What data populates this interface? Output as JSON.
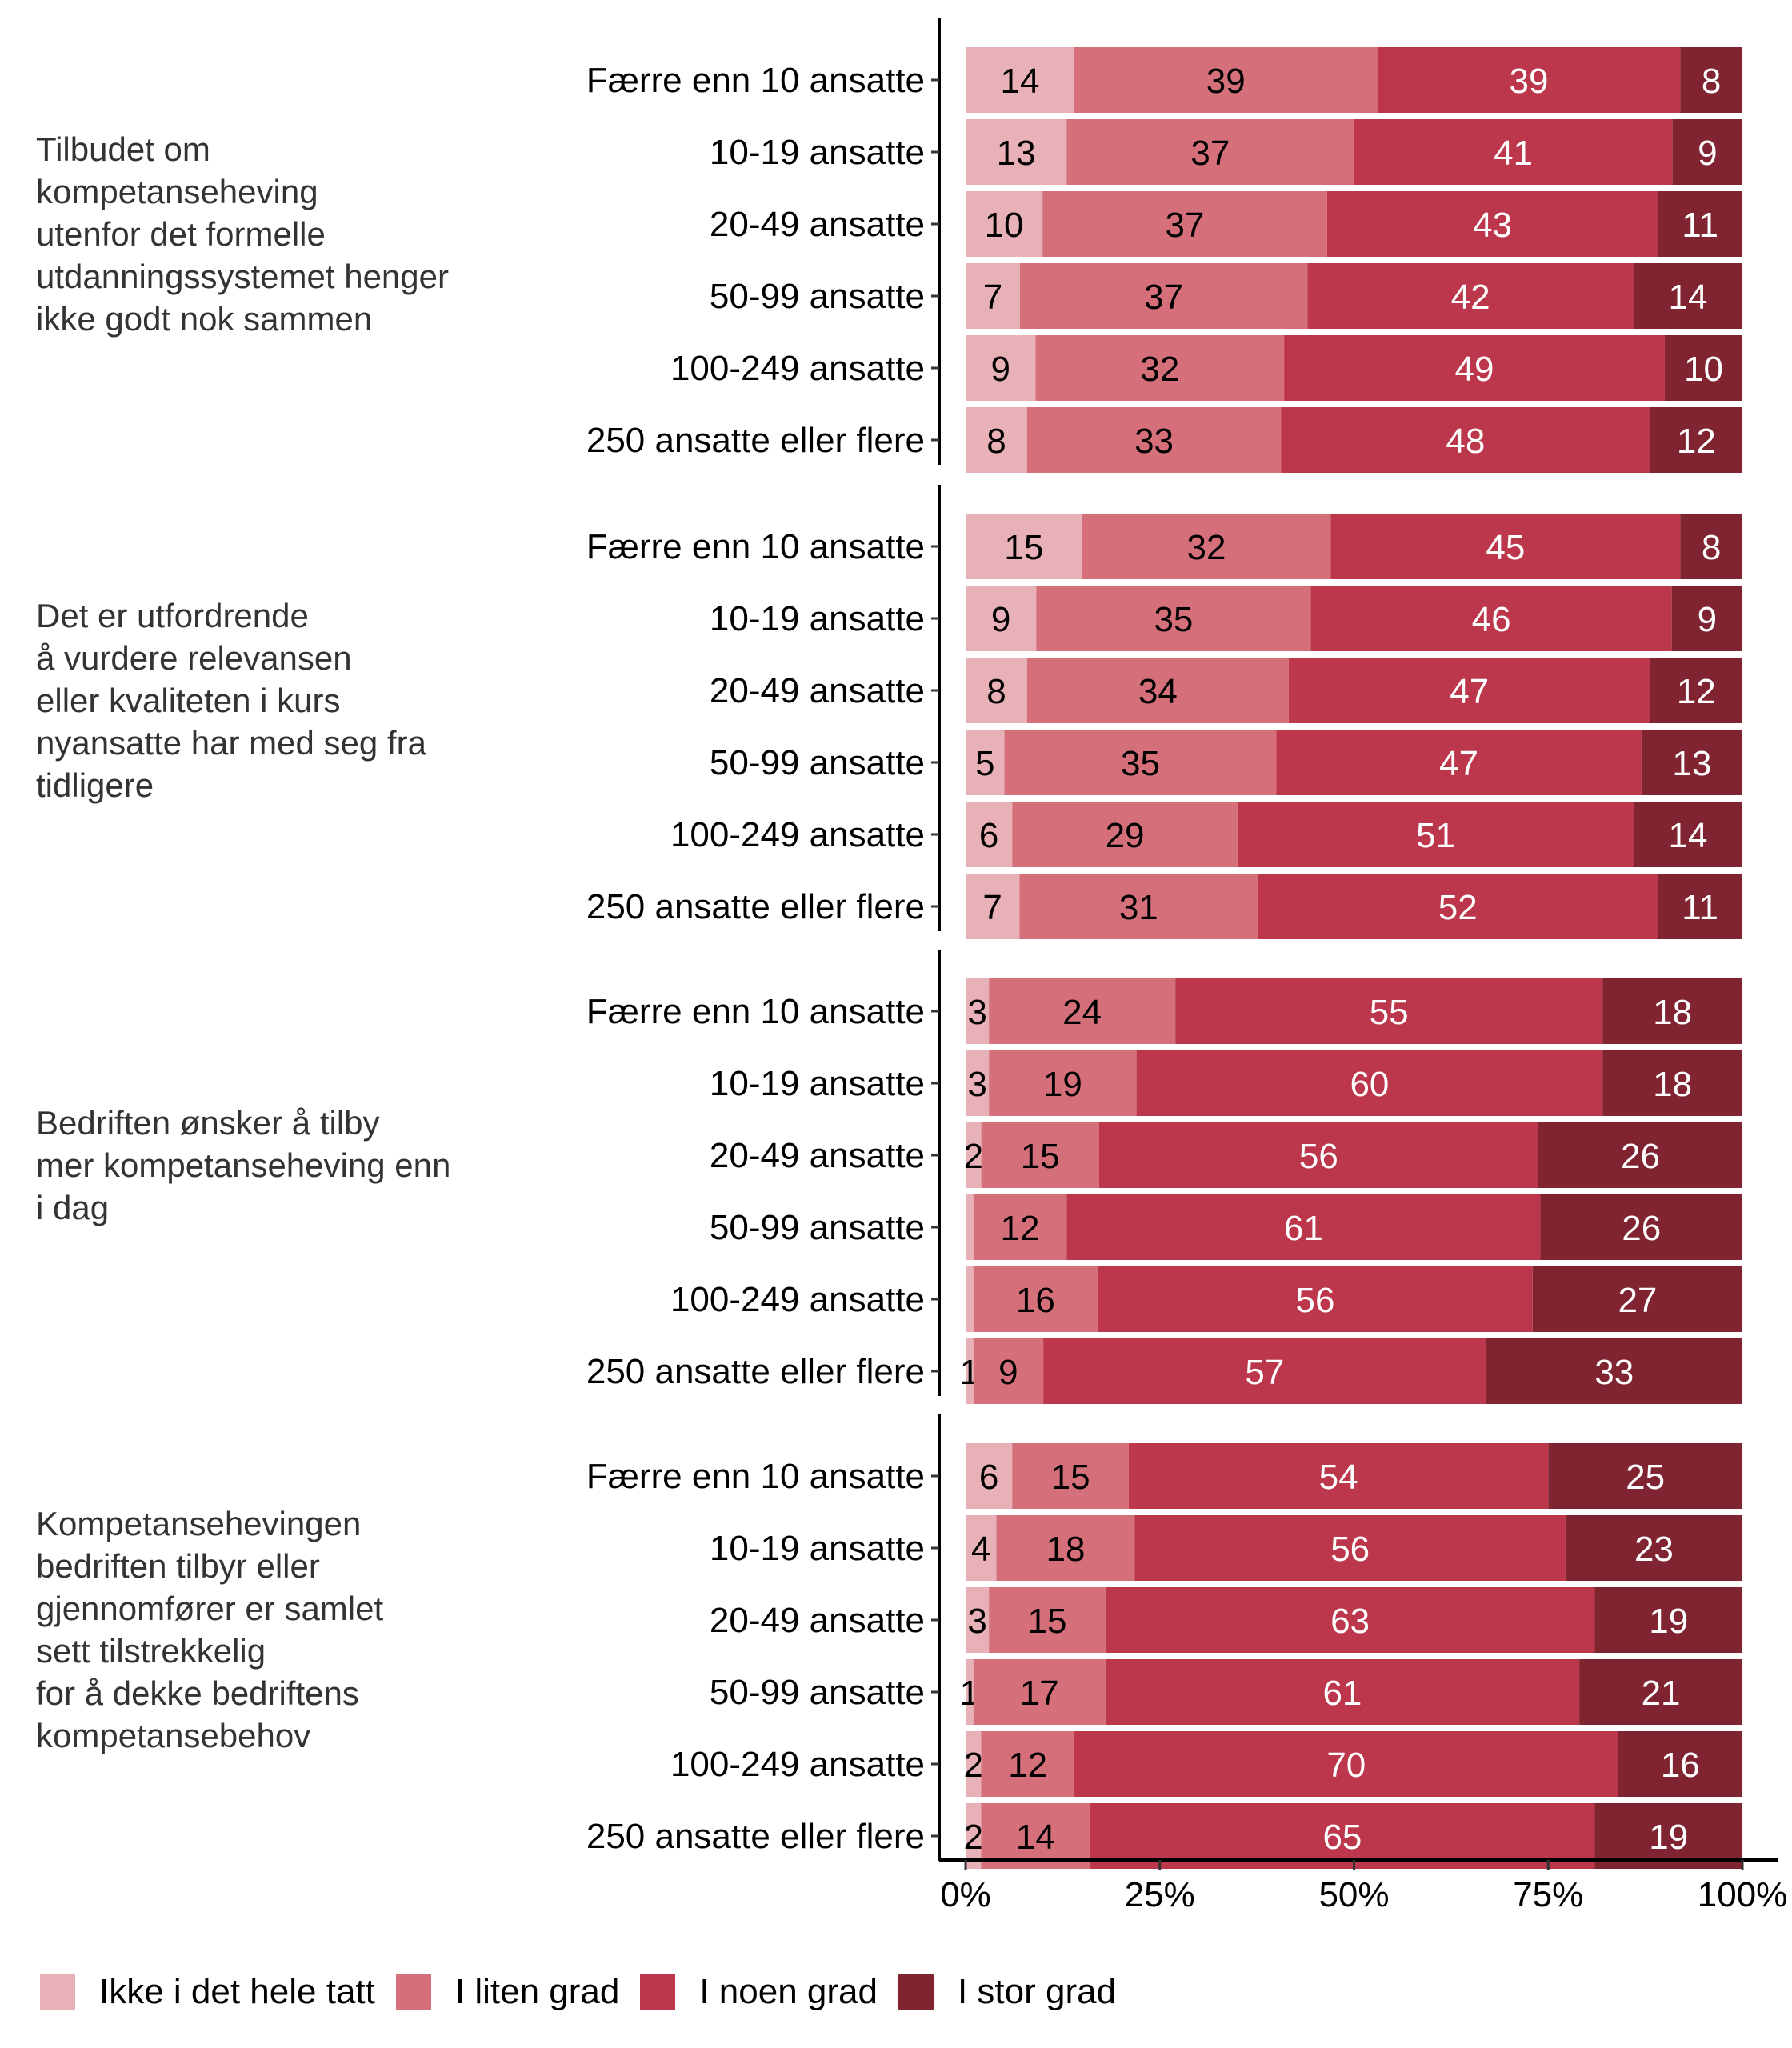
{
  "chart_data": {
    "type": "bar",
    "orientation": "horizontal",
    "stacked": true,
    "percent": true,
    "title": "",
    "xlabel": "",
    "ylabel": "",
    "xlim": [
      0,
      100
    ],
    "x_ticks": [
      "0%",
      "25%",
      "50%",
      "75%",
      "100%"
    ],
    "grid": false,
    "legend_position": "bottom",
    "series_names": [
      "Ikke i det hele tatt",
      "I liten grad",
      "I noen grad",
      "I stor grad"
    ],
    "series_colors": [
      "#e8b1b7",
      "#d5707b",
      "#bc374b",
      "#7f2430"
    ],
    "label_colors": [
      "#000000",
      "#000000",
      "#ffffff",
      "#ffffff"
    ],
    "groups": [
      {
        "label": "Tilbudet om\nkompetanseheving\nutenfor det formelle\nutdanningssystemet henger\nikke godt nok sammen",
        "categories": [
          "Færre enn 10 ansatte",
          "10-19 ansatte",
          "20-49 ansatte",
          "50-99 ansatte",
          "100-249 ansatte",
          "250 ansatte eller flere"
        ],
        "values": [
          [
            14,
            39,
            39,
            8
          ],
          [
            13,
            37,
            41,
            9
          ],
          [
            10,
            37,
            43,
            11
          ],
          [
            7,
            37,
            42,
            14
          ],
          [
            9,
            32,
            49,
            10
          ],
          [
            8,
            33,
            48,
            12
          ]
        ]
      },
      {
        "label": "Det er utfordrende\nå vurdere relevansen\neller kvaliteten i kurs\nnyansatte har med seg fra\ntidligere",
        "categories": [
          "Færre enn 10 ansatte",
          "10-19 ansatte",
          "20-49 ansatte",
          "50-99 ansatte",
          "100-249 ansatte",
          "250 ansatte eller flere"
        ],
        "values": [
          [
            15,
            32,
            45,
            8
          ],
          [
            9,
            35,
            46,
            9
          ],
          [
            8,
            34,
            47,
            12
          ],
          [
            5,
            35,
            47,
            13
          ],
          [
            6,
            29,
            51,
            14
          ],
          [
            7,
            31,
            52,
            11
          ]
        ]
      },
      {
        "label": "Bedriften ønsker å tilby\nmer kompetanseheving enn\ni dag",
        "categories": [
          "Færre enn 10 ansatte",
          "10-19 ansatte",
          "20-49 ansatte",
          "50-99 ansatte",
          "100-249 ansatte",
          "250 ansatte eller flere"
        ],
        "values": [
          [
            3,
            24,
            55,
            18
          ],
          [
            3,
            19,
            60,
            18
          ],
          [
            2,
            15,
            56,
            26
          ],
          [
            1,
            12,
            61,
            26
          ],
          [
            1,
            16,
            56,
            27
          ],
          [
            1,
            9,
            57,
            33
          ]
        ],
        "hidden_labels": [
          [
            3,
            0
          ],
          [
            4,
            0
          ]
        ]
      },
      {
        "label": "Kompetansehevingen\nbedriften tilbyr eller\ngjennomfører er samlet\nsett tilstrekkelig\nfor å dekke bedriftens\nkompetansebehov",
        "categories": [
          "Færre enn 10 ansatte",
          "10-19 ansatte",
          "20-49 ansatte",
          "50-99 ansatte",
          "100-249 ansatte",
          "250 ansatte eller flere"
        ],
        "values": [
          [
            6,
            15,
            54,
            25
          ],
          [
            4,
            18,
            56,
            23
          ],
          [
            3,
            15,
            63,
            19
          ],
          [
            1,
            17,
            61,
            21
          ],
          [
            2,
            12,
            70,
            16
          ],
          [
            2,
            14,
            65,
            19
          ]
        ]
      }
    ]
  }
}
